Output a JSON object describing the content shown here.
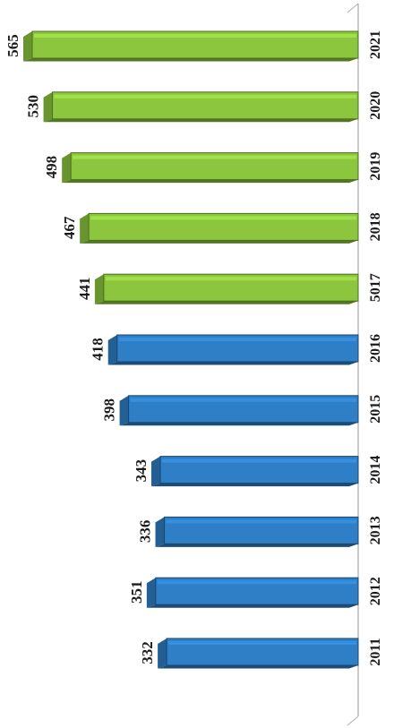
{
  "chart_data": {
    "type": "bar",
    "orientation": "horizontal-rotated",
    "categories": [
      "2011",
      "2012",
      "2013",
      "2014",
      "2015",
      "2016",
      "5017",
      "2018",
      "2019",
      "2020",
      "2021"
    ],
    "values": [
      332,
      351,
      336,
      343,
      398,
      418,
      441,
      467,
      498,
      530,
      565
    ],
    "value_labels": [
      "332",
      "351",
      "336",
      "343",
      "398",
      "418",
      "441",
      "467",
      "498",
      "530",
      "565"
    ],
    "bar_colors": [
      "#2f7fc6",
      "#2f7fc6",
      "#2f7fc6",
      "#2f7fc6",
      "#2f7fc6",
      "#2f7fc6",
      "#8cc63f",
      "#8cc63f",
      "#8cc63f",
      "#8cc63f",
      "#8cc63f"
    ],
    "xlim": [
      0,
      600
    ],
    "grid": false,
    "legend": false,
    "style": "3d"
  }
}
